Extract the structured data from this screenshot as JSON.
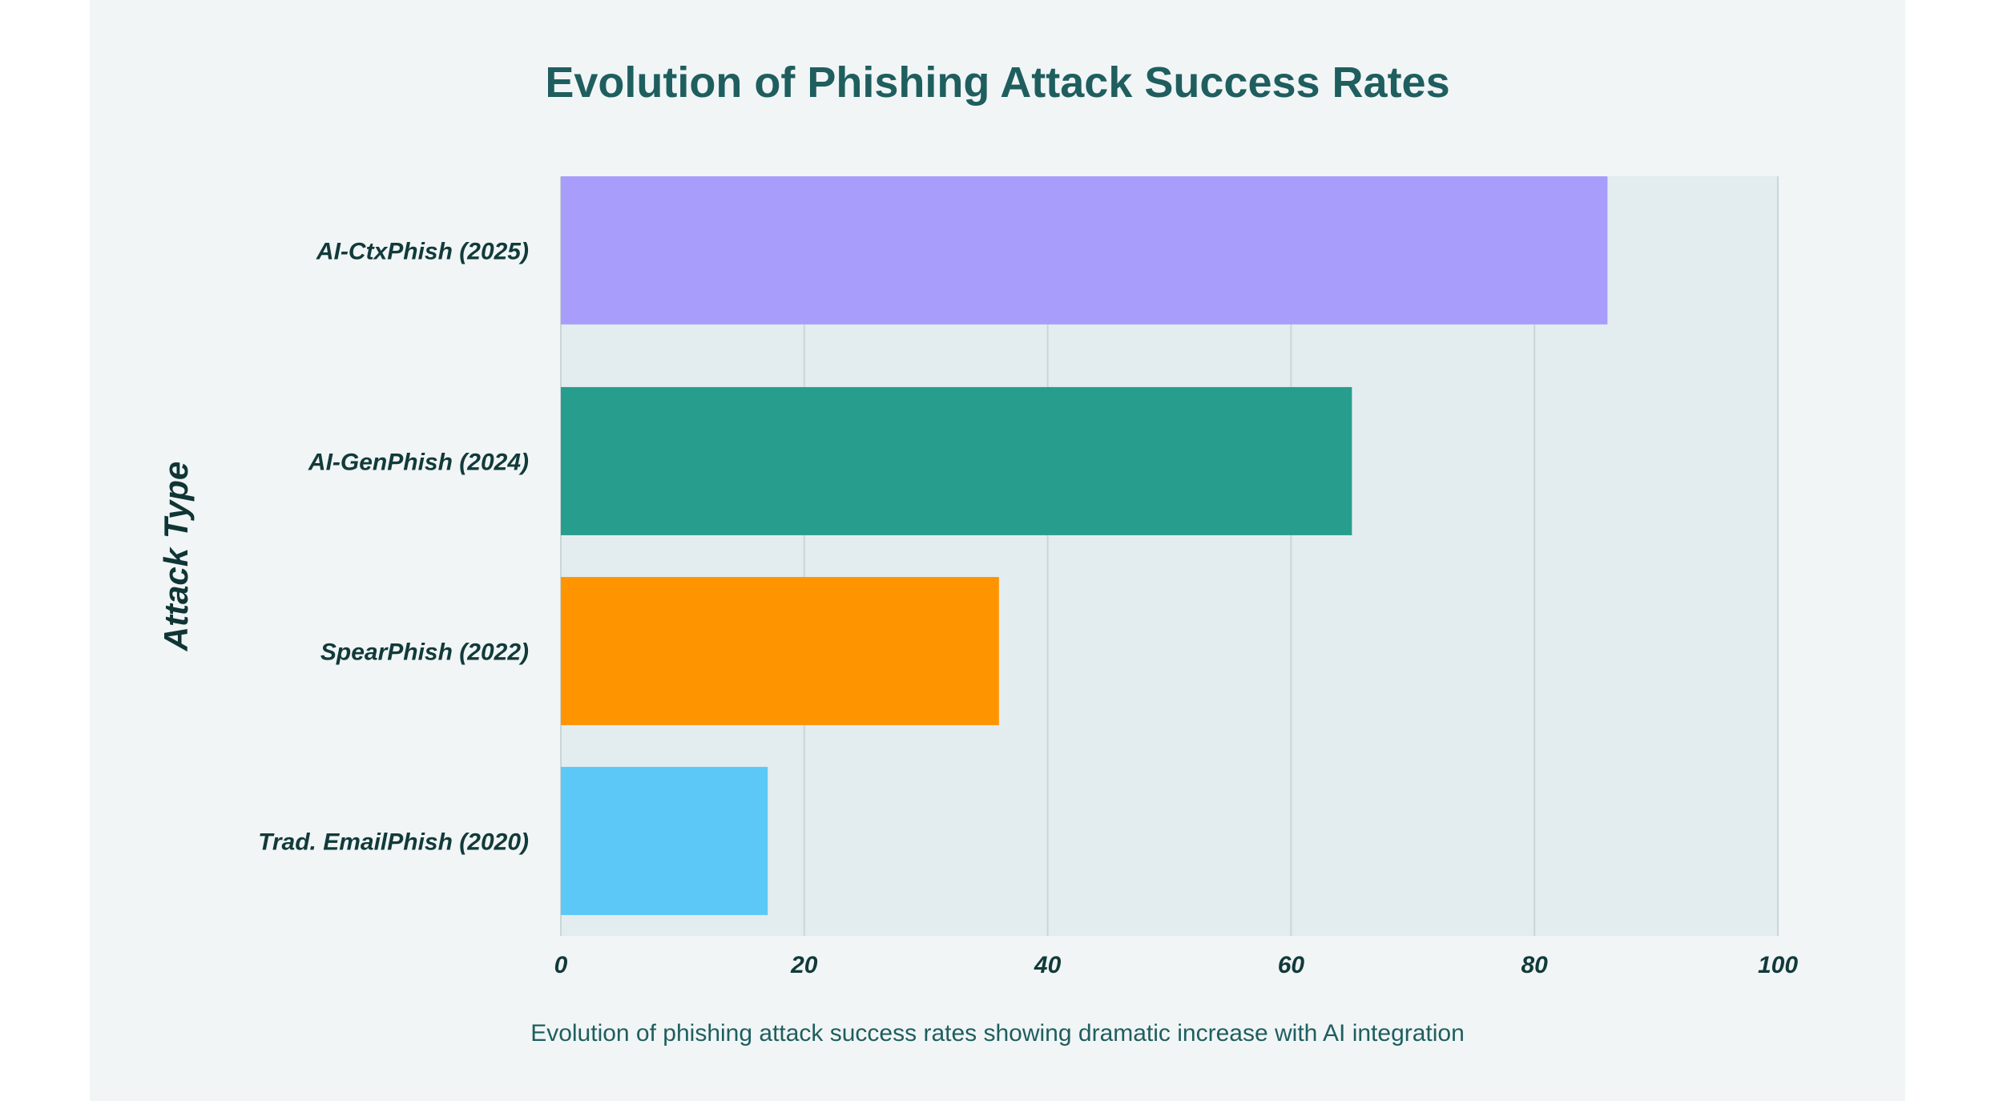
{
  "chart_data": {
    "type": "bar",
    "orientation": "horizontal",
    "title": "Evolution of Phishing Attack Success Rates",
    "caption": "Evolution of phishing attack success rates showing dramatic increase with AI integration",
    "ylabel": "Attack Type",
    "xlabel": "",
    "categories": [
      "AI-CtxPhish (2025)",
      "AI-GenPhish (2024)",
      "SpearPhish (2022)",
      "Trad. EmailPhish (2020)"
    ],
    "values": [
      86,
      65,
      36,
      17
    ],
    "colors": [
      "#a89dfb",
      "#279d8e",
      "#fe9500",
      "#5bc8f8"
    ],
    "xlim": [
      0,
      100
    ],
    "xticks": [
      0,
      20,
      40,
      60,
      80,
      100
    ],
    "grid": "vertical",
    "legend": "none"
  },
  "colors": {
    "background": "#f1f5f6",
    "plot_background": "#e3ecef",
    "gridline": "#cbd6d8",
    "title": "#1f5e5e",
    "label": "#123a3a"
  }
}
